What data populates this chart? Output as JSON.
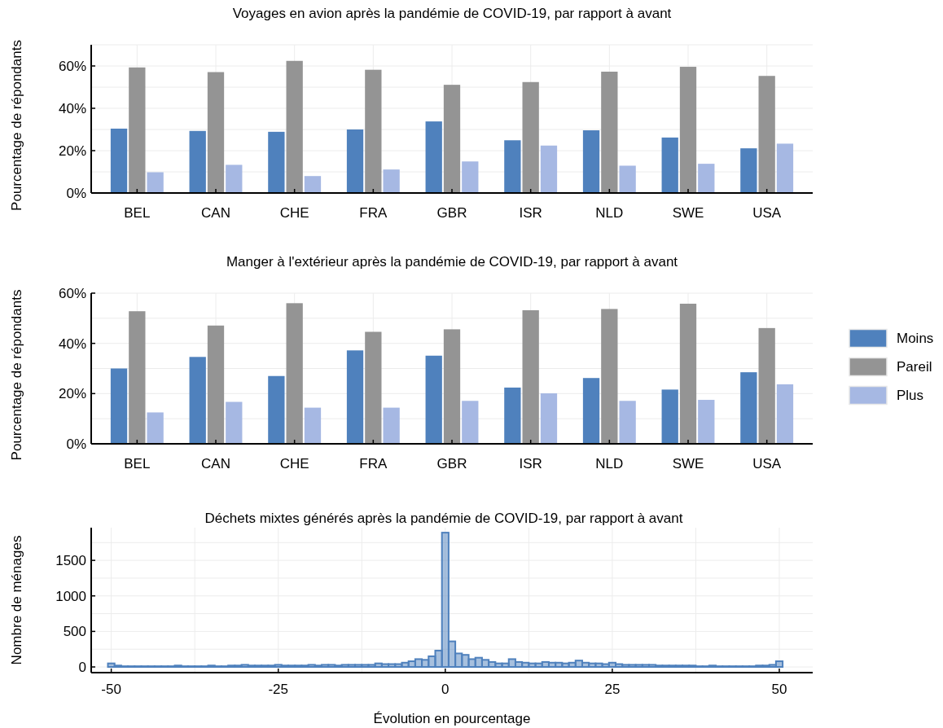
{
  "chart_data": [
    {
      "type": "bar",
      "title": "Voyages en avion après la pandémie de COVID-19, par rapport à avant",
      "ylabel": "Pourcentage de répondants",
      "categories": [
        "BEL",
        "CAN",
        "CHE",
        "FRA",
        "GBR",
        "ISR",
        "NLD",
        "SWE",
        "USA"
      ],
      "series": [
        {
          "color": "#4f81bd",
          "values": [
            30.4,
            29.3,
            28.9,
            30,
            33.8,
            24.9,
            29.6,
            26.2,
            21.1
          ]
        },
        {
          "color": "#949494",
          "values": [
            59.3,
            57.1,
            62.4,
            58.2,
            51.1,
            52.4,
            57.3,
            59.6,
            55.3
          ]
        },
        {
          "color": "#a6b8e3",
          "values": [
            9.8,
            13.3,
            8,
            11.1,
            14.9,
            22.4,
            12.9,
            13.8,
            23.3
          ]
        }
      ],
      "ylim": [
        0,
        70
      ],
      "yticks": [
        {
          "value": 0,
          "label": "0%"
        },
        {
          "value": 20,
          "label": "20%"
        },
        {
          "value": 40,
          "label": "40%"
        },
        {
          "value": 60,
          "label": "60%"
        }
      ],
      "grid": true,
      "legend": false
    },
    {
      "type": "bar",
      "title": "Manger à l'extérieur après la pandémie de COVID-19, par rapport à avant",
      "ylabel": "Pourcentage de répondants",
      "categories": [
        "BEL",
        "CAN",
        "CHE",
        "FRA",
        "GBR",
        "ISR",
        "NLD",
        "SWE",
        "USA"
      ],
      "series": [
        {
          "name": "Moins",
          "color": "#4f81bd",
          "values": [
            30,
            34.6,
            27,
            37.2,
            35.1,
            22.4,
            26.2,
            21.6,
            28.5
          ]
        },
        {
          "name": "Pareil",
          "color": "#949494",
          "values": [
            52.8,
            47.1,
            56,
            44.6,
            45.6,
            53.2,
            53.7,
            55.8,
            46.1
          ]
        },
        {
          "name": "Plus",
          "color": "#a6b8e3",
          "values": [
            12.5,
            16.7,
            14.4,
            14.4,
            17.1,
            20.1,
            17.1,
            17.5,
            23.7
          ]
        }
      ],
      "ylim": [
        0,
        60
      ],
      "yticks": [
        {
          "value": 0,
          "label": "0%"
        },
        {
          "value": 20,
          "label": "20%"
        },
        {
          "value": 40,
          "label": "40%"
        },
        {
          "value": 60,
          "label": "60%"
        }
      ],
      "grid": true,
      "legend": "right"
    },
    {
      "type": "histogram",
      "title": "Déchets mixtes générés après la pandémie de COVID-19, par rapport à avant",
      "xlabel": "Évolution en pourcentage",
      "ylabel": "Nombre de ménages",
      "color": "#4f81bd",
      "bins": [
        -50.5,
        -49.5,
        -48.5,
        -47.5,
        -46.5,
        -45.5,
        -44.5,
        -43.5,
        -42.5,
        -41.5,
        -40.5,
        -39.5,
        -38.5,
        -37.5,
        -36.5,
        -35.5,
        -34.5,
        -33.5,
        -32.5,
        -31.5,
        -30.5,
        -29.5,
        -28.5,
        -27.5,
        -26.5,
        -25.5,
        -24.5,
        -23.5,
        -22.5,
        -21.5,
        -20.5,
        -19.5,
        -18.5,
        -17.5,
        -16.5,
        -15.5,
        -14.5,
        -13.5,
        -12.5,
        -11.5,
        -10.5,
        -9.5,
        -8.5,
        -7.5,
        -6.5,
        -5.5,
        -4.5,
        -3.5,
        -2.5,
        -1.5,
        -0.5,
        0.5,
        1.5,
        2.5,
        3.5,
        4.5,
        5.5,
        6.5,
        7.5,
        8.5,
        9.5,
        10.5,
        11.5,
        12.5,
        13.5,
        14.5,
        15.5,
        16.5,
        17.5,
        18.5,
        19.5,
        20.5,
        21.5,
        22.5,
        23.5,
        24.5,
        25.5,
        26.5,
        27.5,
        28.5,
        29.5,
        30.5,
        31.5,
        32.5,
        33.5,
        34.5,
        35.5,
        36.5,
        37.5,
        38.5,
        39.5,
        40.5,
        41.5,
        42.5,
        43.5,
        44.5,
        45.5,
        46.5,
        47.5,
        48.5,
        49.5,
        50.5
      ],
      "values": [
        50,
        20,
        10,
        10,
        10,
        10,
        10,
        10,
        10,
        10,
        20,
        10,
        10,
        10,
        10,
        20,
        10,
        10,
        20,
        20,
        30,
        20,
        20,
        20,
        20,
        30,
        20,
        20,
        20,
        20,
        30,
        20,
        30,
        30,
        20,
        30,
        30,
        30,
        30,
        30,
        50,
        40,
        40,
        40,
        60,
        80,
        110,
        100,
        150,
        230,
        1890,
        360,
        190,
        170,
        110,
        130,
        100,
        70,
        50,
        50,
        110,
        70,
        60,
        50,
        50,
        70,
        60,
        60,
        50,
        60,
        90,
        60,
        50,
        50,
        40,
        60,
        40,
        30,
        30,
        30,
        30,
        30,
        20,
        20,
        20,
        20,
        20,
        20,
        10,
        10,
        20,
        10,
        10,
        10,
        10,
        10,
        10,
        20,
        20,
        30,
        80
      ],
      "xlim": [
        -53,
        55
      ],
      "xticks": [
        -50,
        -25,
        0,
        25,
        50
      ],
      "ylim": [
        -80,
        1960
      ],
      "yticks": [
        0,
        500,
        1000,
        1500
      ],
      "grid": true
    }
  ]
}
